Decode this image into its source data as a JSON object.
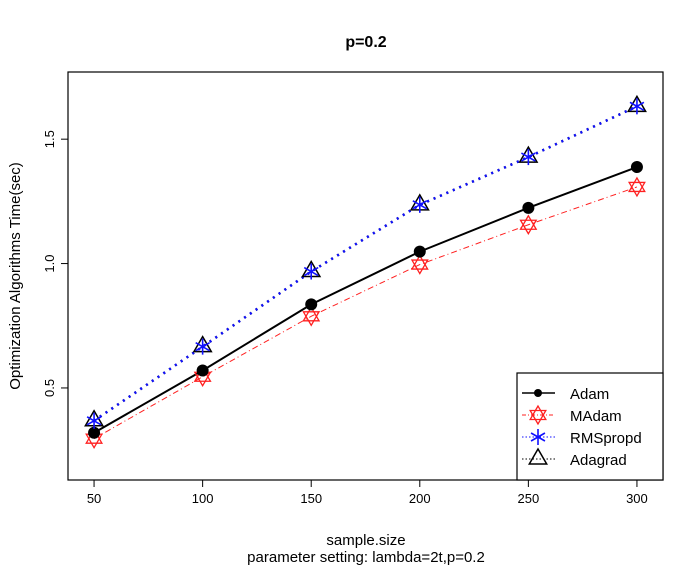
{
  "chart_data": {
    "type": "line",
    "title": "p=0.2",
    "xlabel": "sample.size",
    "subtitle": "parameter setting:  lambda=2t,p=0.2",
    "ylabel": "Optimization Algorithms Time(sec)",
    "x": [
      50,
      100,
      150,
      200,
      250,
      300
    ],
    "xticks": [
      "50",
      "100",
      "150",
      "200",
      "250",
      "300"
    ],
    "yticks": [
      "0.5",
      "1.0",
      "1.5"
    ],
    "ytick_values": [
      0.5,
      1.0,
      1.5
    ],
    "xlim": [
      38,
      312
    ],
    "ylim": [
      0.13,
      1.77
    ],
    "grid": false,
    "legend_position": "bottom-right",
    "series": [
      {
        "name": "Adam",
        "color": "#000000",
        "line": "solid",
        "marker": "filled-circle",
        "values": [
          0.32,
          0.57,
          0.836,
          1.048,
          1.224,
          1.388
        ]
      },
      {
        "name": "MAdam",
        "color": "#ff2020",
        "line": "dashdot",
        "marker": "hexagram",
        "values": [
          0.296,
          0.545,
          0.788,
          0.996,
          1.156,
          1.308
        ]
      },
      {
        "name": "RMSpropd",
        "color": "#1010ff",
        "line": "dotted",
        "marker": "asterisk",
        "values": [
          0.368,
          0.666,
          0.968,
          1.236,
          1.428,
          1.632
        ]
      },
      {
        "name": "Adagrad",
        "color": "#000000",
        "line": "dotted",
        "marker": "open-triangle",
        "values": [
          0.368,
          0.666,
          0.968,
          1.236,
          1.428,
          1.632
        ]
      }
    ]
  }
}
